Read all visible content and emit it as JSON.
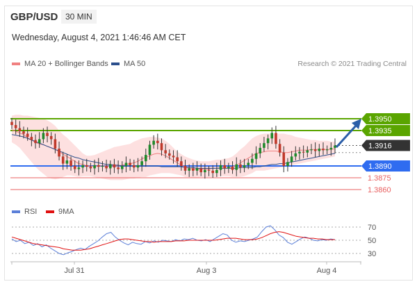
{
  "header": {
    "symbol": "GBP/USD",
    "timeframe": "30 MIN",
    "datetime": "Wednesday, August 4, 2021 1:46:46 AM CET",
    "credit": "Research © 2021 Trading Central"
  },
  "legend": {
    "price": [
      {
        "label": "MA 20 + Bollinger Bands",
        "color": "#f08080"
      },
      {
        "label": "MA 50",
        "color": "#2b4f8c"
      }
    ],
    "rsi": [
      {
        "label": "RSI",
        "color": "#5b7fd8"
      },
      {
        "label": "9MA",
        "color": "#e01010"
      }
    ]
  },
  "colors": {
    "resistance": "#5aa500",
    "current": "#333333",
    "pivot": "#2f6cf0",
    "support": "#e86060",
    "arrow": "#2b5ea8",
    "band": "#fde0e0",
    "bull": "#1f8a2b",
    "bear": "#c0392b"
  },
  "chart_data": [
    {
      "type": "candlestick",
      "title": "GBP/USD 30 MIN",
      "x_labels": [
        "Jul 31",
        "Aug 3",
        "Aug 4"
      ],
      "ylim": [
        1.385,
        1.3975
      ],
      "levels": [
        {
          "value": 1.395,
          "label": "1.3950",
          "kind": "resistance"
        },
        {
          "value": 1.3935,
          "label": "1.3935",
          "kind": "resistance"
        },
        {
          "value": 1.3916,
          "label": "1.3916",
          "kind": "current"
        },
        {
          "value": 1.389,
          "label": "1.3890",
          "kind": "pivot"
        },
        {
          "value": 1.3875,
          "label": "1.3875",
          "kind": "support"
        },
        {
          "value": 1.386,
          "label": "1.3860",
          "kind": "support"
        }
      ],
      "close": [
        1.3942,
        1.3938,
        1.3934,
        1.3931,
        1.3927,
        1.3923,
        1.3919,
        1.3924,
        1.3932,
        1.3928,
        1.3924,
        1.3912,
        1.3902,
        1.3893,
        1.3897,
        1.389,
        1.3886,
        1.3888,
        1.3891,
        1.3889,
        1.3887,
        1.3891,
        1.3889,
        1.389,
        1.3887,
        1.3892,
        1.3888,
        1.3886,
        1.389,
        1.3894,
        1.3891,
        1.3888,
        1.3891,
        1.3896,
        1.3904,
        1.3917,
        1.3922,
        1.3919,
        1.391,
        1.3906,
        1.3903,
        1.3901,
        1.3896,
        1.389,
        1.3884,
        1.3887,
        1.3884,
        1.3887,
        1.3882,
        1.3885,
        1.3884,
        1.3881,
        1.3885,
        1.3891,
        1.3887,
        1.3889,
        1.3885,
        1.3892,
        1.3888,
        1.3891,
        1.3894,
        1.3899,
        1.3906,
        1.3913,
        1.3919,
        1.3925,
        1.3932,
        1.3918,
        1.3907,
        1.389,
        1.3895,
        1.3902,
        1.3906,
        1.3908,
        1.3907,
        1.391,
        1.3911,
        1.3909,
        1.3912,
        1.391,
        1.3911,
        1.3913,
        1.3916
      ],
      "ma20": [
        1.3936,
        1.3934,
        1.3932,
        1.393,
        1.3926,
        1.3923,
        1.392,
        1.3918,
        1.3917,
        1.3915,
        1.3913,
        1.3911,
        1.3908,
        1.3905,
        1.3902,
        1.3899,
        1.3896,
        1.3893,
        1.3892,
        1.389,
        1.389,
        1.3889,
        1.389,
        1.389,
        1.389,
        1.389,
        1.389,
        1.389,
        1.3891,
        1.3892,
        1.3893,
        1.3894,
        1.3896,
        1.3899,
        1.3901,
        1.3903,
        1.3905,
        1.3906,
        1.3905,
        1.3903,
        1.39,
        1.3897,
        1.3894,
        1.3891,
        1.3889,
        1.3887,
        1.3886,
        1.3886,
        1.3886,
        1.3886,
        1.3886,
        1.3887,
        1.3887,
        1.3888,
        1.3888,
        1.3888,
        1.3889,
        1.3891,
        1.3894,
        1.3897,
        1.39,
        1.3903,
        1.3906,
        1.3907,
        1.3908,
        1.3909,
        1.3909,
        1.3909,
        1.3908,
        1.3907,
        1.3907,
        1.3908,
        1.3909,
        1.391,
        1.391,
        1.391,
        1.3911,
        1.3911,
        1.3911,
        1.3911,
        1.3911,
        1.3911,
        1.3912
      ],
      "upper": [
        1.3954,
        1.3955,
        1.3955,
        1.3954,
        1.3954,
        1.3953,
        1.3952,
        1.3951,
        1.395,
        1.3948,
        1.3945,
        1.3941,
        1.3935,
        1.393,
        1.3926,
        1.3921,
        1.3916,
        1.3911,
        1.3906,
        1.3903,
        1.3903,
        1.3904,
        1.3906,
        1.3908,
        1.391,
        1.3912,
        1.3914,
        1.3915,
        1.3916,
        1.3917,
        1.3918,
        1.3921,
        1.3923,
        1.3925,
        1.3926,
        1.3927,
        1.3927,
        1.3926,
        1.3925,
        1.3922,
        1.3918,
        1.3913,
        1.3908,
        1.3905,
        1.3902,
        1.39,
        1.3898,
        1.3897,
        1.3896,
        1.3896,
        1.3896,
        1.3897,
        1.3898,
        1.3898,
        1.3899,
        1.39,
        1.3902,
        1.3906,
        1.3911,
        1.3915,
        1.392,
        1.3925,
        1.3928,
        1.393,
        1.3931,
        1.3931,
        1.3931,
        1.3931,
        1.3931,
        1.3931,
        1.393,
        1.3929,
        1.3927,
        1.3926,
        1.3925,
        1.3924,
        1.3923,
        1.3923,
        1.3922,
        1.3922,
        1.3922,
        1.3921,
        1.3921
      ],
      "lower": [
        1.392,
        1.3917,
        1.3913,
        1.3907,
        1.3901,
        1.3895,
        1.3889,
        1.3884,
        1.388,
        1.3876,
        1.3874,
        1.3873,
        1.3874,
        1.3876,
        1.3878,
        1.3878,
        1.3877,
        1.3876,
        1.3877,
        1.3877,
        1.3877,
        1.3876,
        1.3875,
        1.3874,
        1.3873,
        1.3872,
        1.3872,
        1.3872,
        1.3872,
        1.3873,
        1.3874,
        1.3874,
        1.3875,
        1.3876,
        1.3876,
        1.3878,
        1.3879,
        1.388,
        1.3881,
        1.3881,
        1.3881,
        1.388,
        1.3879,
        1.3878,
        1.3876,
        1.3876,
        1.3875,
        1.3875,
        1.3876,
        1.3876,
        1.3876,
        1.3876,
        1.3876,
        1.3877,
        1.3877,
        1.3877,
        1.3876,
        1.3876,
        1.3876,
        1.3877,
        1.3879,
        1.3881,
        1.3884,
        1.3884,
        1.3884,
        1.3885,
        1.3886,
        1.3887,
        1.3888,
        1.3889,
        1.389,
        1.3891,
        1.3892,
        1.3893,
        1.3894,
        1.3895,
        1.3896,
        1.3897,
        1.3898,
        1.3899,
        1.39,
        1.3901,
        1.3902
      ],
      "ma50": [
        1.393,
        1.3929,
        1.3928,
        1.3927,
        1.3925,
        1.3923,
        1.3921,
        1.3919,
        1.3917,
        1.3915,
        1.3913,
        1.3911,
        1.3909,
        1.3907,
        1.3905,
        1.3903,
        1.3901,
        1.39,
        1.3898,
        1.3897,
        1.3896,
        1.3895,
        1.3894,
        1.3893,
        1.3892,
        1.3892,
        1.3891,
        1.3891,
        1.389,
        1.389,
        1.389,
        1.389,
        1.389,
        1.389,
        1.389,
        1.389,
        1.389,
        1.389,
        1.3889,
        1.3889,
        1.3889,
        1.3889,
        1.3889,
        1.3889,
        1.3888,
        1.3888,
        1.3888,
        1.3887,
        1.3887,
        1.3887,
        1.3887,
        1.3887,
        1.3887,
        1.3887,
        1.3887,
        1.3887,
        1.3887,
        1.3887,
        1.3888,
        1.3888,
        1.3888,
        1.3888,
        1.3889,
        1.3889,
        1.389,
        1.3891,
        1.3892,
        1.3892,
        1.3893,
        1.3893,
        1.3894,
        1.3895,
        1.3896,
        1.3897,
        1.3898,
        1.3899,
        1.39,
        1.3901,
        1.3902,
        1.3903,
        1.3904,
        1.3905,
        1.3906
      ]
    },
    {
      "type": "line",
      "title": "RSI",
      "ylim": [
        20,
        80
      ],
      "y_ticks": [
        70,
        50,
        30
      ],
      "series": [
        {
          "name": "RSI",
          "values": [
            52,
            48,
            50,
            45,
            47,
            42,
            45,
            40,
            43,
            38,
            34,
            30,
            28,
            31,
            33,
            36,
            38,
            36,
            41,
            45,
            49,
            55,
            60,
            62,
            55,
            50,
            46,
            43,
            47,
            45,
            44,
            48,
            46,
            49,
            47,
            50,
            49,
            48,
            51,
            49,
            52,
            51,
            53,
            50,
            49,
            51,
            48,
            52,
            56,
            60,
            58,
            50,
            47,
            49,
            48,
            50,
            52,
            55,
            63,
            70,
            72,
            66,
            58,
            54,
            47,
            44,
            48,
            52,
            55,
            53,
            50,
            49,
            51,
            50,
            52,
            51
          ]
        },
        {
          "name": "9MA",
          "values": [
            55,
            53,
            51,
            49,
            47,
            45,
            44,
            43,
            42,
            41,
            40,
            39,
            37,
            36,
            35,
            35,
            35,
            36,
            37,
            39,
            41,
            43,
            45,
            47,
            49,
            51,
            52,
            52,
            51,
            50,
            49,
            48,
            48,
            47,
            48,
            48,
            48,
            48,
            49,
            49,
            49,
            50,
            50,
            50,
            50,
            50,
            50,
            50,
            51,
            52,
            53,
            53,
            53,
            52,
            51,
            51,
            51,
            52,
            54,
            57,
            60,
            62,
            63,
            62,
            60,
            58,
            56,
            55,
            54,
            53,
            53,
            52,
            52,
            51,
            51,
            51
          ]
        }
      ]
    }
  ]
}
